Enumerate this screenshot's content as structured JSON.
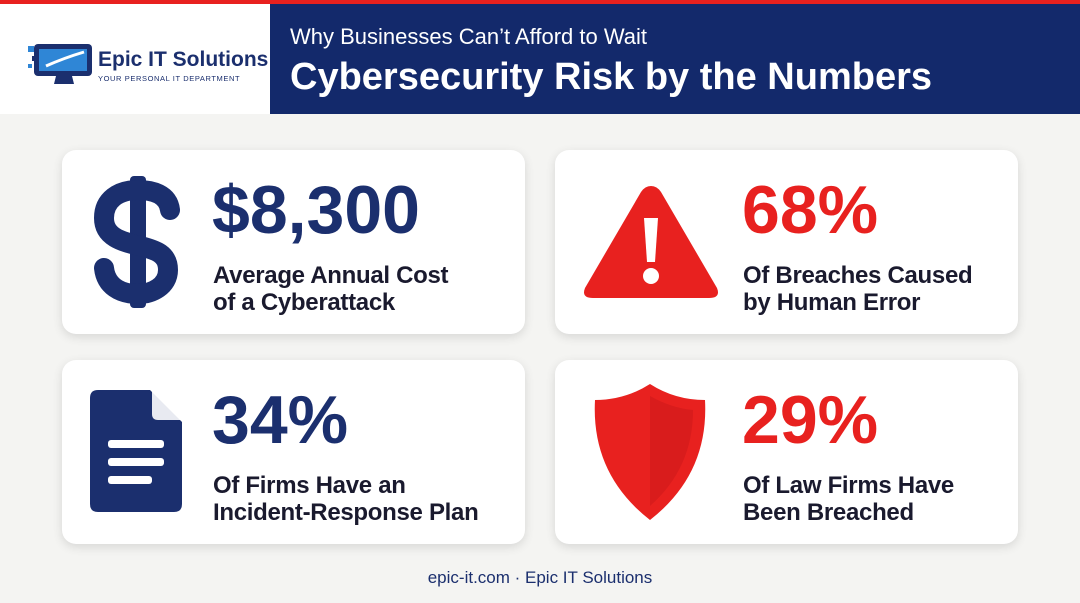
{
  "header": {
    "logo": {
      "name": "Epic IT Solutions",
      "tagline": "YOUR PERSONAL IT DEPARTMENT"
    },
    "subtitle": "Why Businesses Can’t Afford to Wait",
    "title": "Cybersecurity Risk by the Numbers"
  },
  "cards": [
    {
      "stat": "$8,300",
      "label": [
        "Average Annual Cost",
        "of a Cyberattack"
      ]
    },
    {
      "stat": "68%",
      "label": [
        "Of Breaches Caused",
        "by Human Error"
      ]
    },
    {
      "stat": "34%",
      "label": [
        "Of Firms Have an",
        "Incident-Response Plan"
      ]
    },
    {
      "stat": "29%",
      "label": [
        "Of Law Firms Have",
        "Been Breached"
      ]
    }
  ],
  "footer": "epic-it.com · Epic IT Solutions"
}
